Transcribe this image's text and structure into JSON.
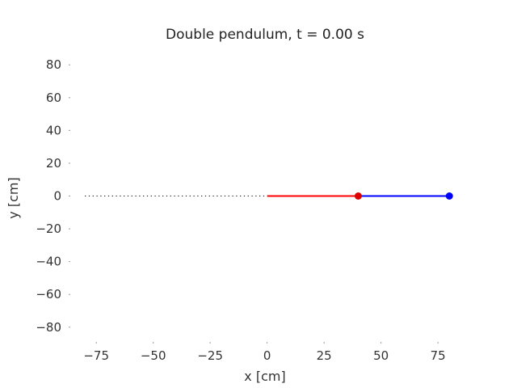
{
  "chart_data": {
    "type": "line",
    "title": "Double pendulum, t = 0.00 s",
    "xlabel": "x [cm]",
    "ylabel": "y [cm]",
    "xlim": [
      -85,
      87
    ],
    "ylim": [
      -88,
      88
    ],
    "xticks": [
      -75,
      -50,
      -25,
      0,
      25,
      50,
      75
    ],
    "yticks": [
      -80,
      -60,
      -40,
      -20,
      0,
      20,
      40,
      60,
      80
    ],
    "xtick_labels": [
      "−75",
      "−50",
      "−25",
      "0",
      "25",
      "50",
      "75"
    ],
    "ytick_labels": [
      "−80",
      "−60",
      "−40",
      "−20",
      "0",
      "20",
      "40",
      "60",
      "80"
    ],
    "grid": false,
    "pivot": [
      0,
      0
    ],
    "rods": [
      {
        "from": [
          0,
          0
        ],
        "to": [
          40,
          0
        ],
        "color": "#ff0000"
      },
      {
        "from": [
          40,
          0
        ],
        "to": [
          80,
          0
        ],
        "color": "#0000ff"
      }
    ],
    "bobs": [
      {
        "x": 40,
        "y": 0,
        "color": "#dd0000"
      },
      {
        "x": 80,
        "y": 0,
        "color": "#0000ff"
      }
    ],
    "trace": {
      "x": [
        -80,
        0
      ],
      "y": [
        0,
        0
      ],
      "style": "dotted",
      "color": "#000000"
    }
  }
}
